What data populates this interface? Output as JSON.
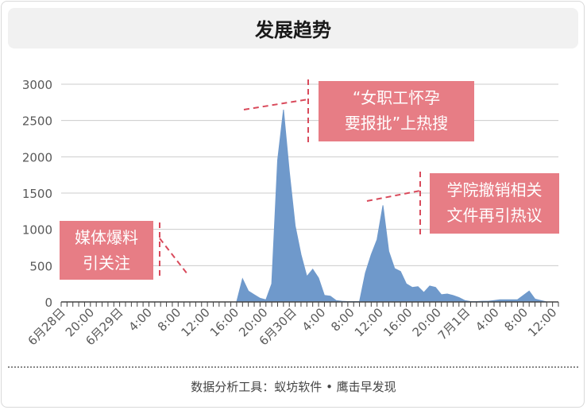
{
  "title": "发展趋势",
  "footer": "数据分析工具：蚁坊软件 • 鹰击早发现",
  "colors": {
    "area": "#6f99cb",
    "annotation_fill": "#e77d85",
    "annotation_line": "#d94a5b",
    "grid": "#cccccc",
    "axis": "#444444",
    "text": "#595959"
  },
  "annotations": [
    {
      "lines": [
        "媒体爆料",
        "引关注"
      ]
    },
    {
      "lines": [
        "“女职工怀孕",
        "要报批”上热搜"
      ]
    },
    {
      "lines": [
        "学院撤销相关",
        "文件再引热议"
      ]
    }
  ],
  "chart_data": {
    "type": "area",
    "title": "发展趋势",
    "xlabel": "",
    "ylabel": "",
    "ylim": [
      0,
      3000
    ],
    "yticks": [
      0,
      500,
      1000,
      1500,
      2000,
      2500,
      3000
    ],
    "grid": true,
    "x_tick_labels": [
      "6月28日",
      "20:00",
      "6月29日",
      "4:00",
      "8:00",
      "12:00",
      "16:00",
      "20:00",
      "6月30日",
      "4:00",
      "8:00",
      "12:00",
      "16:00",
      "20:00",
      "7月1日",
      "4:00",
      "8:00",
      "12:00"
    ],
    "x_tick_hours": [
      0,
      20,
      24,
      28,
      32,
      36,
      40,
      44,
      48,
      52,
      56,
      60,
      64,
      68,
      72,
      76,
      80,
      84
    ],
    "x_range_hours": [
      0,
      85
    ],
    "series": [
      {
        "x_hours": [
          0,
          2,
          4,
          6,
          8,
          10,
          12,
          14,
          16,
          18,
          20,
          22,
          24,
          26,
          28,
          30,
          31,
          32,
          33,
          34,
          35,
          36,
          37,
          38,
          39,
          40,
          41,
          42,
          43,
          44,
          45,
          46,
          47,
          48,
          49,
          50,
          51,
          52,
          53,
          54,
          55,
          56,
          57,
          58,
          59,
          60,
          61,
          62,
          63,
          64,
          65,
          66,
          67,
          68,
          69,
          70,
          71,
          72,
          73,
          74,
          75,
          76,
          78,
          80,
          81,
          82,
          83,
          84,
          85
        ],
        "values": [
          0,
          0,
          0,
          0,
          0,
          0,
          0,
          0,
          0,
          0,
          0,
          0,
          0,
          0,
          0,
          0,
          320,
          150,
          100,
          50,
          30,
          250,
          1950,
          2650,
          1800,
          1050,
          650,
          350,
          450,
          330,
          90,
          80,
          20,
          10,
          5,
          5,
          5,
          400,
          650,
          860,
          1330,
          700,
          460,
          420,
          250,
          200,
          210,
          130,
          220,
          200,
          100,
          110,
          90,
          60,
          20,
          5,
          5,
          10,
          10,
          20,
          30,
          30,
          30,
          150,
          40,
          20,
          0,
          0,
          0
        ]
      }
    ]
  }
}
